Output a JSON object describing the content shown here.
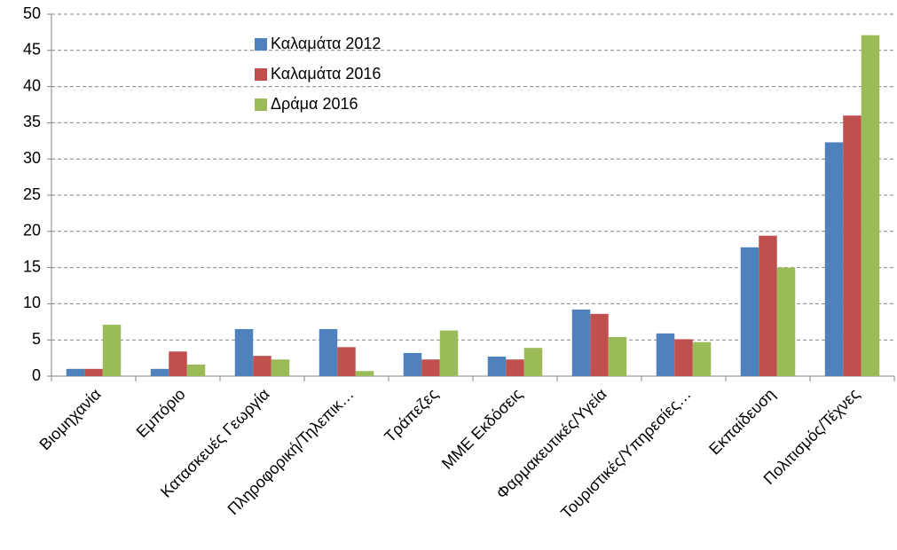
{
  "chart_data": {
    "type": "bar",
    "categories": [
      "Βιομηχανία",
      "Εμπόριο",
      "Κατασκευές Γεωργία",
      "Πληροφορική/Τηλεπικ…",
      "Τράπεζες",
      "ΜΜΕ Εκδόσεις",
      "Φαρμακευτικές/Υγεία",
      "Τουριστικές/Υπηρεσίες…",
      "Εκπαίδευση",
      "Πολιτισμός/Τέχνες"
    ],
    "series": [
      {
        "name": "Καλαμάτα 2012",
        "color": "#4f81bd",
        "values": [
          1.0,
          1.0,
          6.5,
          6.5,
          3.2,
          2.7,
          9.2,
          5.9,
          17.8,
          32.3
        ]
      },
      {
        "name": "Καλαμάτα 2016",
        "color": "#c0504d",
        "values": [
          1.0,
          3.4,
          2.8,
          4.0,
          2.3,
          2.3,
          8.6,
          5.1,
          19.4,
          36.0
        ]
      },
      {
        "name": "Δράμα 2016",
        "color": "#9bbb59",
        "values": [
          7.1,
          1.6,
          2.3,
          0.7,
          6.3,
          3.9,
          5.4,
          4.7,
          15.0,
          47.1
        ]
      }
    ],
    "ylim": [
      0,
      50
    ],
    "yticks": [
      0,
      5,
      10,
      15,
      20,
      25,
      30,
      35,
      40,
      45,
      50
    ],
    "grid": true
  }
}
